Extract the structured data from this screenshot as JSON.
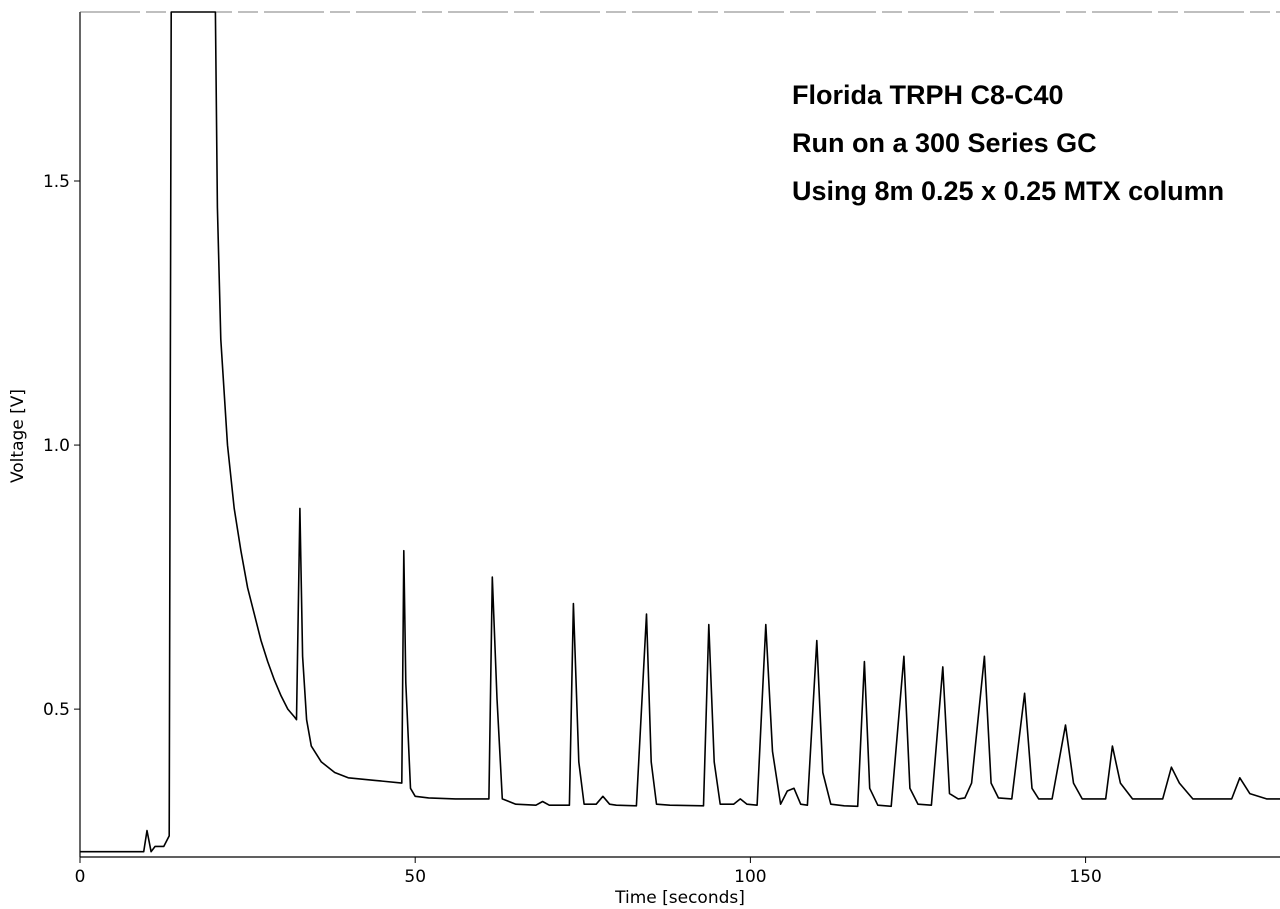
{
  "chart_data": {
    "type": "line",
    "title": "",
    "xlabel": "Time [seconds]",
    "ylabel": "Voltage [V]",
    "xlim": [
      0,
      179
    ],
    "ylim": [
      0.22,
      1.82
    ],
    "xticks": [
      {
        "value": 0,
        "label": "0"
      },
      {
        "value": 50,
        "label": "50"
      },
      {
        "value": 100,
        "label": "100"
      },
      {
        "value": 150,
        "label": "150"
      }
    ],
    "yticks": [
      {
        "value": 0.5,
        "label": "0.5"
      },
      {
        "value": 1.0,
        "label": "1.0"
      },
      {
        "value": 1.5,
        "label": "1.5"
      }
    ],
    "annotations": [
      "Florida TRPH C8-C40",
      "Run on a 300 Series GC",
      "Using 8m 0.25 x 0.25 MTX column"
    ],
    "grid": false,
    "line_color": "#000000",
    "series": [
      {
        "x": [
          0,
          9.5,
          10,
          10.6,
          11.2,
          12.5,
          13.3,
          13.6,
          14.1,
          14.4,
          16,
          18,
          20.2,
          20.5,
          21,
          22,
          23,
          24,
          25,
          26,
          27,
          28,
          29,
          30,
          31,
          32,
          32.3,
          32.8,
          33.2,
          33.8,
          34.5,
          36,
          38,
          40,
          44,
          48,
          48.3,
          48.6,
          49.3,
          50,
          52,
          56,
          60,
          61,
          61.5,
          62.2,
          63,
          65,
          68,
          69,
          70,
          73,
          73.6,
          74.4,
          75.2,
          77,
          78,
          79,
          80,
          83,
          84.5,
          85.2,
          86,
          88,
          93,
          93.8,
          94.6,
          95.5,
          97.5,
          98.5,
          99.5,
          101,
          102.3,
          103.3,
          104.5,
          105.5,
          106.5,
          107.5,
          108.5,
          109.9,
          110.8,
          112,
          114,
          116,
          117,
          117.8,
          119,
          121,
          122.9,
          123.8,
          125,
          127,
          128.7,
          129.7,
          131,
          132,
          133,
          134.9,
          135.9,
          137,
          139,
          140.9,
          142,
          143,
          145,
          147,
          148.2,
          149.5,
          151,
          153,
          154,
          155.2,
          157,
          159,
          161.5,
          162.8,
          164,
          166,
          169,
          171.8,
          173,
          174.5,
          177,
          179
        ],
        "y": [
          0.23,
          0.23,
          0.27,
          0.23,
          0.24,
          0.24,
          0.26,
          1.82,
          1.82,
          1.82,
          1.82,
          1.82,
          1.82,
          1.45,
          1.2,
          1.0,
          0.88,
          0.8,
          0.73,
          0.68,
          0.63,
          0.59,
          0.555,
          0.525,
          0.5,
          0.485,
          0.48,
          0.88,
          0.6,
          0.48,
          0.43,
          0.4,
          0.38,
          0.37,
          0.365,
          0.36,
          0.8,
          0.55,
          0.35,
          0.335,
          0.332,
          0.33,
          0.33,
          0.33,
          0.75,
          0.52,
          0.33,
          0.32,
          0.318,
          0.325,
          0.318,
          0.318,
          0.7,
          0.4,
          0.32,
          0.32,
          0.335,
          0.32,
          0.318,
          0.317,
          0.68,
          0.4,
          0.32,
          0.318,
          0.317,
          0.66,
          0.4,
          0.32,
          0.32,
          0.33,
          0.32,
          0.318,
          0.66,
          0.42,
          0.32,
          0.345,
          0.35,
          0.32,
          0.318,
          0.63,
          0.38,
          0.32,
          0.317,
          0.316,
          0.59,
          0.35,
          0.318,
          0.316,
          0.6,
          0.35,
          0.32,
          0.318,
          0.58,
          0.34,
          0.33,
          0.332,
          0.36,
          0.6,
          0.36,
          0.332,
          0.33,
          0.53,
          0.35,
          0.33,
          0.33,
          0.47,
          0.36,
          0.33,
          0.33,
          0.33,
          0.43,
          0.36,
          0.33,
          0.33,
          0.33,
          0.39,
          0.36,
          0.33,
          0.33,
          0.33,
          0.37,
          0.34,
          0.33,
          0.33
        ]
      }
    ]
  }
}
